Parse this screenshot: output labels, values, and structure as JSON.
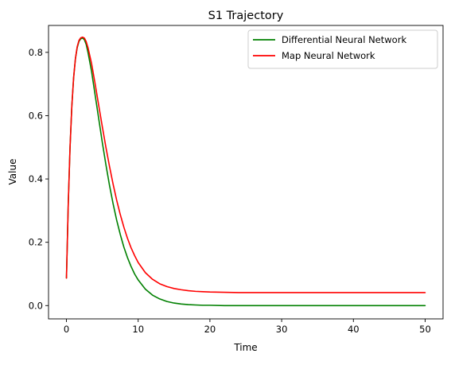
{
  "chart_data": {
    "type": "line",
    "title": "S1 Trajectory",
    "xlabel": "Time",
    "ylabel": "Value",
    "xlim": [
      -2.5,
      52.5
    ],
    "ylim": [
      -0.042,
      0.885
    ],
    "xticks": [
      0,
      10,
      20,
      30,
      40,
      50
    ],
    "xtick_labels": [
      "0",
      "10",
      "20",
      "30",
      "40",
      "50"
    ],
    "yticks": [
      0.0,
      0.2,
      0.4,
      0.6,
      0.8
    ],
    "ytick_labels": [
      "0.0",
      "0.2",
      "0.4",
      "0.6",
      "0.8"
    ],
    "grid": false,
    "legend_position": "top-right",
    "series": [
      {
        "name": "Differential Neural Network",
        "color": "#008000",
        "x": [
          0,
          0.25,
          0.5,
          0.75,
          1,
          1.25,
          1.5,
          1.75,
          2,
          2.25,
          2.5,
          2.75,
          3,
          3.5,
          4,
          4.5,
          5,
          5.5,
          6,
          6.5,
          7,
          7.5,
          8,
          8.5,
          9,
          9.5,
          10,
          11,
          12,
          13,
          14,
          15,
          16,
          17,
          18,
          19,
          20,
          22,
          24,
          26,
          28,
          30,
          35,
          40,
          45,
          50
        ],
        "y": [
          0.087,
          0.32,
          0.5,
          0.63,
          0.72,
          0.78,
          0.815,
          0.835,
          0.843,
          0.845,
          0.84,
          0.825,
          0.8,
          0.74,
          0.665,
          0.59,
          0.515,
          0.445,
          0.38,
          0.322,
          0.27,
          0.225,
          0.185,
          0.152,
          0.124,
          0.1,
          0.081,
          0.052,
          0.033,
          0.021,
          0.013,
          0.008,
          0.005,
          0.003,
          0.002,
          0.001,
          0.001,
          0.0,
          0.0,
          0.0,
          0.0,
          0.0,
          0.0,
          0.0,
          0.0,
          0.0
        ]
      },
      {
        "name": "Map Neural Network",
        "color": "#ff0000",
        "x": [
          0,
          0.25,
          0.5,
          0.75,
          1,
          1.25,
          1.5,
          1.75,
          2,
          2.25,
          2.5,
          2.75,
          3,
          3.5,
          4,
          4.5,
          5,
          5.5,
          6,
          6.5,
          7,
          7.5,
          8,
          8.5,
          9,
          9.5,
          10,
          11,
          12,
          13,
          14,
          15,
          16,
          17,
          18,
          19,
          20,
          22,
          24,
          26,
          28,
          30,
          35,
          40,
          45,
          50
        ],
        "y": [
          0.087,
          0.32,
          0.5,
          0.63,
          0.72,
          0.78,
          0.818,
          0.838,
          0.846,
          0.848,
          0.845,
          0.834,
          0.815,
          0.765,
          0.7,
          0.632,
          0.565,
          0.5,
          0.44,
          0.384,
          0.333,
          0.288,
          0.248,
          0.213,
          0.183,
          0.158,
          0.136,
          0.104,
          0.083,
          0.069,
          0.06,
          0.054,
          0.05,
          0.047,
          0.045,
          0.044,
          0.043,
          0.042,
          0.041,
          0.041,
          0.041,
          0.041,
          0.041,
          0.041,
          0.041,
          0.041
        ]
      }
    ]
  }
}
